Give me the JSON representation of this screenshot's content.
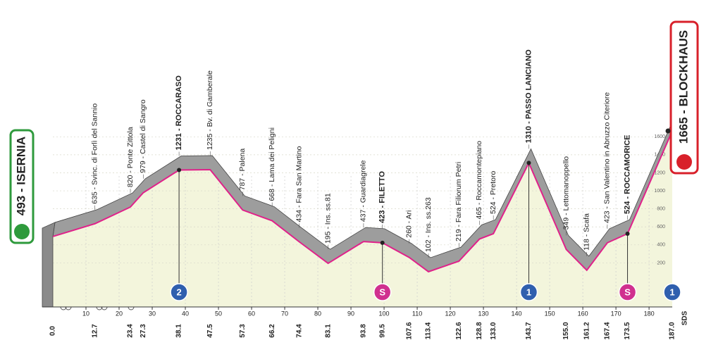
{
  "chart_data": {
    "type": "profile",
    "line_color": "#e0218a",
    "road_color": "#9d9d9d",
    "fill_color": "#f3f5dc",
    "waypoints": [
      {
        "km": {
          "value": 0,
          "label": "0.0"
        },
        "elevation": 493,
        "label": "493 - ISERNIA",
        "bold": true
      },
      {
        "km": 12.7,
        "elevation": 635,
        "label": "635 - Svinc. di Forlì del Sannio"
      },
      {
        "km": 23.4,
        "elevation": 820,
        "label": "820 - Ponte Zittola"
      },
      {
        "km": 27.3,
        "elevation": 979,
        "label": "979 - Castel di Sangro"
      },
      {
        "km": 38.1,
        "elevation": 1231,
        "label": "1231 - ROCCARASO",
        "bold": true
      },
      {
        "km": 47.5,
        "elevation": 1235,
        "label": "1235 - Bv. di Gamberale"
      },
      {
        "km": 57.3,
        "elevation": 787,
        "label": "787 - Palena"
      },
      {
        "km": 66.2,
        "elevation": 668,
        "label": "668 - Lama dei Peligni"
      },
      {
        "km": 74.4,
        "elevation": 434,
        "label": "434 - Fara San Martino"
      },
      {
        "km": 83.1,
        "elevation": 195,
        "label": "195 - Ins. ss.81"
      },
      {
        "km": 93.8,
        "elevation": 437,
        "label": "437 - Guardiagrele"
      },
      {
        "km": 99.5,
        "elevation": 423,
        "label": "423 - FILETTO",
        "bold": true
      },
      {
        "km": 107.6,
        "elevation": 260,
        "label": "260 - Ari"
      },
      {
        "km": 113.4,
        "elevation": 102,
        "label": "102 - Ins. ss.263"
      },
      {
        "km": 122.6,
        "elevation": 219,
        "label": "219 - Fara Filiorum Petri"
      },
      {
        "km": 128.8,
        "elevation": 465,
        "label": "465 - Roccamontepiano"
      },
      {
        "km": {
          "value": 133,
          "label": "133.0"
        },
        "elevation": 524,
        "label": "524 - Pretoro"
      },
      {
        "km": 143.7,
        "elevation": 1310,
        "label": "1310 - PASSO LANCIANO",
        "bold": true
      },
      {
        "km": {
          "value": 155,
          "label": "155.0"
        },
        "elevation": 349,
        "label": "349 - Lettomanoppello"
      },
      {
        "km": 161.2,
        "elevation": 118,
        "label": "118 - Scafa"
      },
      {
        "km": 167.4,
        "elevation": 423,
        "label": "423 - San Valentino in Abruzzo Citeriore"
      },
      {
        "km": 173.5,
        "elevation": 524,
        "label": "524 - ROCCAMORICE",
        "bold": true
      },
      {
        "km": {
          "value": 187,
          "label": "187.0"
        },
        "elevation": 1665,
        "label": "1665 - BLOCKHAUS",
        "bold": true
      }
    ],
    "markers": [
      {
        "km": 38.1,
        "label": "2",
        "color": "#2f5fae"
      },
      {
        "km": 99.5,
        "label": "S",
        "color": "#d0308f"
      },
      {
        "km": 143.7,
        "label": "1",
        "color": "#2f5fae"
      },
      {
        "km": 173.5,
        "label": "S",
        "color": "#d0308f"
      },
      {
        "km": 187,
        "label": "1",
        "color": "#2f5fae"
      }
    ],
    "xlim": [
      0,
      187
    ],
    "xticks": [
      10,
      20,
      30,
      40,
      50,
      60,
      70,
      80,
      90,
      100,
      110,
      120,
      130,
      140,
      150,
      160,
      170,
      180
    ],
    "ylim": [
      0,
      1665
    ],
    "yticks": [
      200,
      400,
      600,
      800,
      1000,
      1200,
      1400,
      1600
    ],
    "footer": "SDS"
  }
}
